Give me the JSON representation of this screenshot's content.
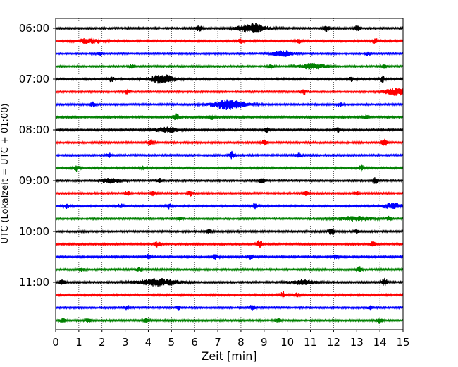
{
  "chart_data": {
    "type": "line",
    "title": "",
    "xlabel": "Zeit  [min]",
    "ylabel": "UTC (Lokalzeit = UTC + 01:00)",
    "xlim": [
      0,
      15
    ],
    "x_ticks": [
      "0",
      "1",
      "2",
      "3",
      "4",
      "5",
      "6",
      "7",
      "8",
      "9",
      "10",
      "11",
      "12",
      "13",
      "14",
      "15"
    ],
    "y_ticks": [
      "06:00",
      "07:00",
      "08:00",
      "09:00",
      "10:00",
      "11:00"
    ],
    "grid_x": true,
    "trace_interval_min": 15,
    "trace_colors": [
      "#000000",
      "#ff0000",
      "#0000ff",
      "#008000"
    ],
    "traces": [
      {
        "start": "06:00",
        "color": "#000000",
        "events": [
          {
            "t": 6.2,
            "a": 4
          },
          {
            "t": 8.5,
            "a": 7,
            "w": 0.6
          },
          {
            "t": 11.7,
            "a": 4
          },
          {
            "t": 13.0,
            "a": 4
          }
        ]
      },
      {
        "start": "06:15",
        "color": "#ff0000",
        "events": [
          {
            "t": 1.5,
            "a": 4,
            "w": 0.5
          },
          {
            "t": 8.0,
            "a": 3
          },
          {
            "t": 10.5,
            "a": 3
          },
          {
            "t": 13.8,
            "a": 4
          }
        ]
      },
      {
        "start": "06:30",
        "color": "#0000ff",
        "events": [
          {
            "t": 1.9,
            "a": 3
          },
          {
            "t": 9.8,
            "a": 4,
            "w": 0.5
          },
          {
            "t": 13.5,
            "a": 3
          }
        ]
      },
      {
        "start": "06:45",
        "color": "#008000",
        "events": [
          {
            "t": 3.3,
            "a": 3
          },
          {
            "t": 9.3,
            "a": 4
          },
          {
            "t": 11.1,
            "a": 4,
            "w": 0.6
          },
          {
            "t": 14.2,
            "a": 3
          }
        ]
      },
      {
        "start": "07:00",
        "color": "#000000",
        "events": [
          {
            "t": 2.4,
            "a": 4
          },
          {
            "t": 4.6,
            "a": 6,
            "w": 0.6
          },
          {
            "t": 12.8,
            "a": 4
          },
          {
            "t": 14.1,
            "a": 4
          }
        ]
      },
      {
        "start": "07:15",
        "color": "#ff0000",
        "events": [
          {
            "t": 3.1,
            "a": 3
          },
          {
            "t": 10.7,
            "a": 4
          },
          {
            "t": 14.7,
            "a": 5,
            "w": 0.5
          }
        ]
      },
      {
        "start": "07:30",
        "color": "#0000ff",
        "events": [
          {
            "t": 1.6,
            "a": 3
          },
          {
            "t": 7.5,
            "a": 7,
            "w": 0.7
          },
          {
            "t": 12.3,
            "a": 3
          }
        ]
      },
      {
        "start": "07:45",
        "color": "#008000",
        "events": [
          {
            "t": 5.2,
            "a": 5
          },
          {
            "t": 6.7,
            "a": 4
          },
          {
            "t": 13.4,
            "a": 3
          }
        ]
      },
      {
        "start": "08:00",
        "color": "#000000",
        "events": [
          {
            "t": 4.8,
            "a": 4,
            "w": 0.5
          },
          {
            "t": 9.1,
            "a": 4
          },
          {
            "t": 12.2,
            "a": 3
          }
        ]
      },
      {
        "start": "08:15",
        "color": "#ff0000",
        "events": [
          {
            "t": 4.1,
            "a": 4
          },
          {
            "t": 9.0,
            "a": 4
          },
          {
            "t": 14.2,
            "a": 5
          }
        ]
      },
      {
        "start": "08:30",
        "color": "#0000ff",
        "events": [
          {
            "t": 2.3,
            "a": 3
          },
          {
            "t": 7.6,
            "a": 5
          },
          {
            "t": 10.5,
            "a": 3
          }
        ]
      },
      {
        "start": "08:45",
        "color": "#008000",
        "events": [
          {
            "t": 0.9,
            "a": 4
          },
          {
            "t": 3.8,
            "a": 3
          },
          {
            "t": 13.2,
            "a": 4
          }
        ]
      },
      {
        "start": "09:00",
        "color": "#000000",
        "events": [
          {
            "t": 2.4,
            "a": 3,
            "w": 0.5
          },
          {
            "t": 4.5,
            "a": 3
          },
          {
            "t": 8.9,
            "a": 5
          },
          {
            "t": 13.8,
            "a": 4
          }
        ]
      },
      {
        "start": "09:15",
        "color": "#ff0000",
        "events": [
          {
            "t": 3.1,
            "a": 3
          },
          {
            "t": 4.2,
            "a": 3
          },
          {
            "t": 5.8,
            "a": 4
          },
          {
            "t": 10.8,
            "a": 3
          },
          {
            "t": 13.0,
            "a": 3
          }
        ]
      },
      {
        "start": "09:30",
        "color": "#0000ff",
        "events": [
          {
            "t": 0.5,
            "a": 3
          },
          {
            "t": 2.8,
            "a": 3
          },
          {
            "t": 4.9,
            "a": 4
          },
          {
            "t": 8.6,
            "a": 4
          },
          {
            "t": 14.6,
            "a": 4,
            "w": 0.5
          }
        ]
      },
      {
        "start": "09:45",
        "color": "#008000",
        "events": [
          {
            "t": 5.4,
            "a": 3
          },
          {
            "t": 12.9,
            "a": 3,
            "w": 0.8
          },
          {
            "t": 14.4,
            "a": 3
          }
        ]
      },
      {
        "start": "10:00",
        "color": "#000000",
        "events": [
          {
            "t": 6.6,
            "a": 3
          },
          {
            "t": 11.9,
            "a": 5
          },
          {
            "t": 13.0,
            "a": 3
          }
        ]
      },
      {
        "start": "10:15",
        "color": "#ff0000",
        "events": [
          {
            "t": 4.4,
            "a": 4
          },
          {
            "t": 8.8,
            "a": 5
          },
          {
            "t": 13.7,
            "a": 3
          }
        ]
      },
      {
        "start": "10:30",
        "color": "#0000ff",
        "events": [
          {
            "t": 4.0,
            "a": 3
          },
          {
            "t": 6.9,
            "a": 3
          },
          {
            "t": 8.4,
            "a": 3
          },
          {
            "t": 12.1,
            "a": 3
          }
        ]
      },
      {
        "start": "10:45",
        "color": "#008000",
        "events": [
          {
            "t": 1.1,
            "a": 3
          },
          {
            "t": 3.6,
            "a": 3
          },
          {
            "t": 13.1,
            "a": 4
          }
        ]
      },
      {
        "start": "11:00",
        "color": "#000000",
        "events": [
          {
            "t": 0.3,
            "a": 4
          },
          {
            "t": 4.4,
            "a": 5,
            "w": 0.9
          },
          {
            "t": 10.7,
            "a": 3,
            "w": 0.6
          },
          {
            "t": 14.2,
            "a": 5
          }
        ]
      },
      {
        "start": "11:15",
        "color": "#ff0000",
        "events": [
          {
            "t": 9.8,
            "a": 5
          },
          {
            "t": 10.4,
            "a": 3
          }
        ]
      },
      {
        "start": "11:30",
        "color": "#0000ff",
        "events": [
          {
            "t": 3.1,
            "a": 3
          },
          {
            "t": 5.3,
            "a": 3
          },
          {
            "t": 8.5,
            "a": 4
          },
          {
            "t": 13.6,
            "a": 3
          }
        ]
      },
      {
        "start": "11:45",
        "color": "#008000",
        "events": [
          {
            "t": 0.3,
            "a": 3
          },
          {
            "t": 1.4,
            "a": 3
          },
          {
            "t": 3.9,
            "a": 3
          },
          {
            "t": 9.6,
            "a": 3
          },
          {
            "t": 14.0,
            "a": 4
          }
        ]
      }
    ]
  }
}
